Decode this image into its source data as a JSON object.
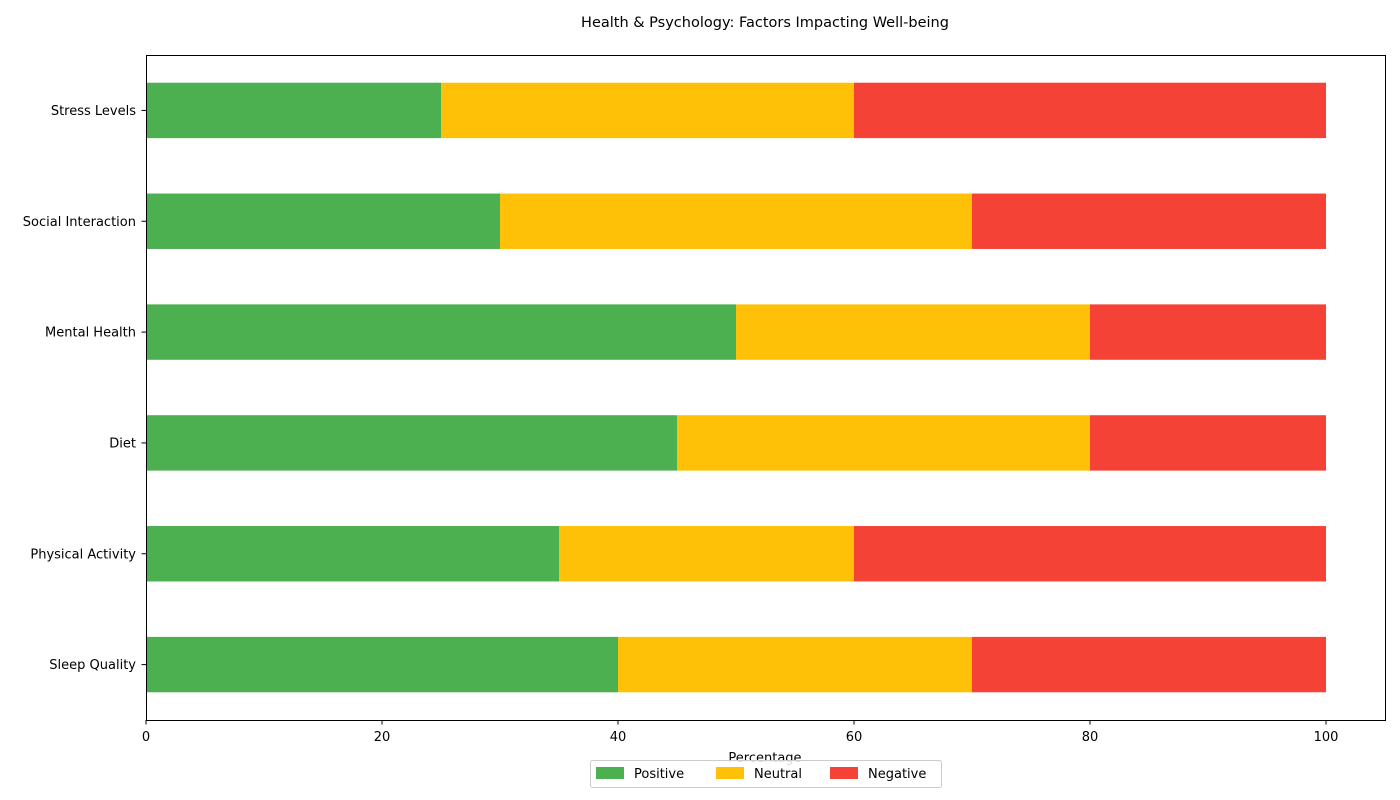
{
  "chart_data": {
    "type": "bar",
    "orientation": "horizontal",
    "stacked": true,
    "title": "Health & Psychology: Factors Impacting Well-being",
    "xlabel": "Percentage",
    "ylabel": "",
    "xlim": [
      0,
      105
    ],
    "xticks": [
      0,
      20,
      40,
      60,
      80,
      100
    ],
    "grid": false,
    "legend_position": "bottom-center",
    "categories": [
      "Sleep Quality",
      "Physical Activity",
      "Diet",
      "Mental Health",
      "Social Interaction",
      "Stress Levels"
    ],
    "series": [
      {
        "name": "Positive",
        "color": "#4caf50",
        "values": [
          40,
          35,
          45,
          50,
          30,
          25
        ]
      },
      {
        "name": "Neutral",
        "color": "#ffc107",
        "values": [
          30,
          25,
          35,
          30,
          40,
          35
        ]
      },
      {
        "name": "Negative",
        "color": "#f44336",
        "values": [
          30,
          40,
          20,
          20,
          30,
          40
        ]
      }
    ]
  }
}
